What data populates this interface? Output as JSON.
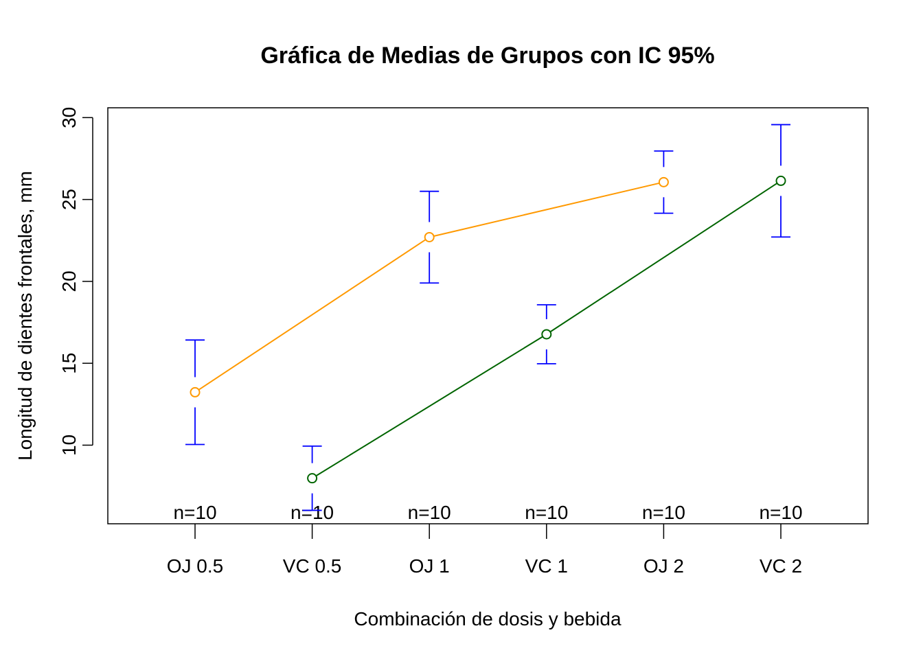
{
  "chart_data": {
    "type": "line",
    "title": "Gráfica de Medias de Grupos con IC 95%",
    "xlabel": "Combinación de dosis y bebida",
    "ylabel": "Longitud de dientes frontales, mm",
    "categories": [
      "OJ 0.5",
      "VC 0.5",
      "OJ 1",
      "VC 1",
      "OJ 2",
      "VC 2"
    ],
    "ylim": [
      5.2,
      30.6
    ],
    "yticks": [
      10,
      15,
      20,
      25,
      30
    ],
    "grid": false,
    "legend": "none",
    "n_labels": [
      "n=10",
      "n=10",
      "n=10",
      "n=10",
      "n=10",
      "n=10"
    ],
    "series": [
      {
        "color": "#ff9900",
        "points": [
          {
            "category": "OJ 0.5",
            "mean": 13.23,
            "ci_low": 10.04,
            "ci_high": 16.42
          },
          {
            "category": "OJ 1",
            "mean": 22.7,
            "ci_low": 19.9,
            "ci_high": 25.5
          },
          {
            "category": "OJ 2",
            "mean": 26.06,
            "ci_low": 24.16,
            "ci_high": 27.96
          }
        ]
      },
      {
        "color": "#006400",
        "points": [
          {
            "category": "VC 0.5",
            "mean": 7.98,
            "ci_low": 6.02,
            "ci_high": 9.94
          },
          {
            "category": "VC 1",
            "mean": 16.77,
            "ci_low": 14.97,
            "ci_high": 18.57
          },
          {
            "category": "VC 2",
            "mean": 26.14,
            "ci_low": 22.71,
            "ci_high": 29.57
          }
        ]
      }
    ],
    "errorbar_color": "#0000ff"
  }
}
